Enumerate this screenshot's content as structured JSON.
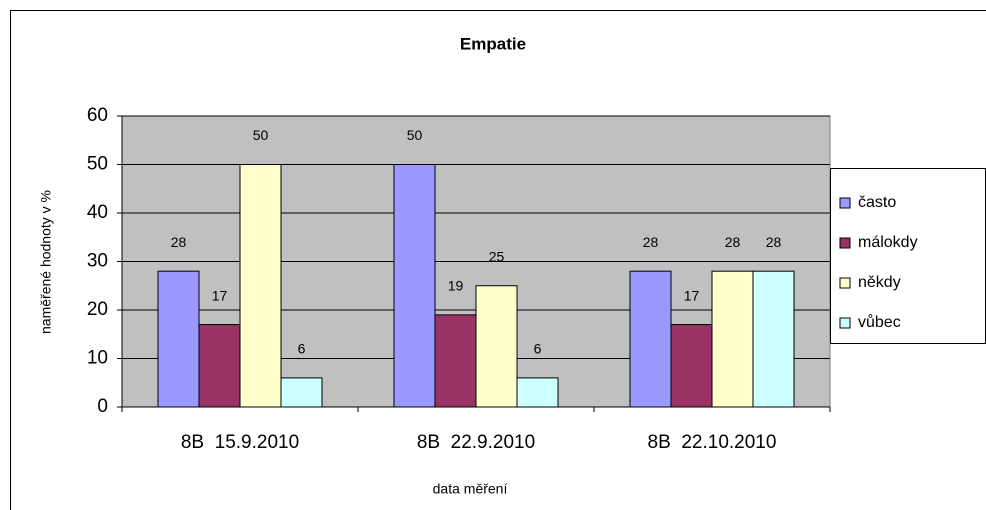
{
  "chart_data": {
    "type": "bar",
    "title": "Empatie",
    "x_label": "data měření",
    "y_label": "naměřené hodnoty v %",
    "categories": [
      "8B  15.9.2010",
      "8B  22.9.2010",
      "8B  22.10.2010"
    ],
    "series": [
      {
        "name": "často",
        "color": "#9999ff",
        "values": [
          28,
          50,
          28
        ]
      },
      {
        "name": "málokdy",
        "color": "#993366",
        "values": [
          17,
          19,
          17
        ]
      },
      {
        "name": "někdy",
        "color": "#ffffcc",
        "values": [
          50,
          25,
          28
        ]
      },
      {
        "name": "vůbec",
        "color": "#ccffff",
        "values": [
          6,
          6,
          28
        ]
      }
    ],
    "ylim": [
      0,
      60
    ],
    "yticks": [
      0,
      10,
      20,
      30,
      40,
      50,
      60
    ],
    "grid": true,
    "legend": "right",
    "plot_background": "#c0c0c0"
  }
}
